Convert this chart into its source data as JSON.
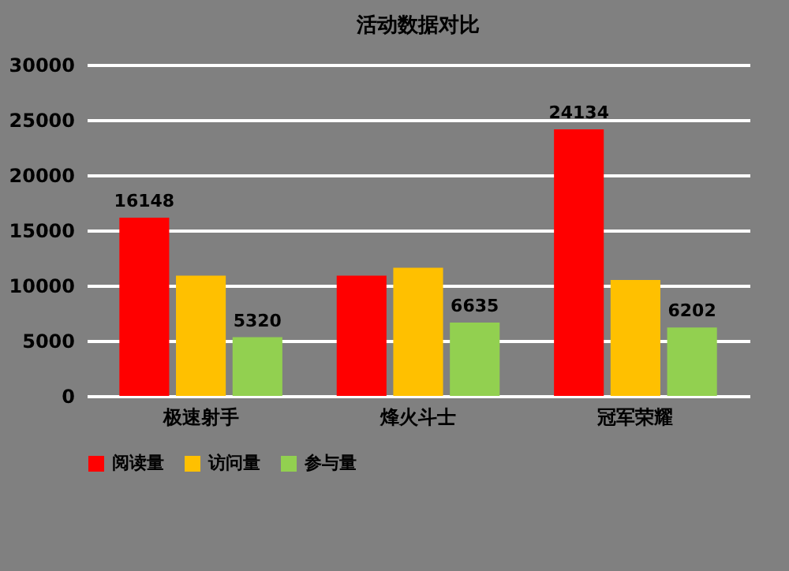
{
  "chart_data": {
    "type": "bar",
    "title": "活动数据对比",
    "categories": [
      "极速射手",
      "烽火斗士",
      "冠军荣耀"
    ],
    "series": [
      {
        "name": "阅读量",
        "color": "#ff0000",
        "values": [
          16148,
          10900,
          24134
        ],
        "value_labels": [
          "16148",
          null,
          "24134"
        ]
      },
      {
        "name": "访问量",
        "color": "#ffc000",
        "values": [
          10900,
          11600,
          10500
        ],
        "value_labels": [
          null,
          null,
          null
        ]
      },
      {
        "name": "参与量",
        "color": "#92d050",
        "values": [
          5320,
          6635,
          6202
        ],
        "value_labels": [
          "5320",
          "6635",
          "6202"
        ]
      }
    ],
    "ylim": [
      0,
      30000
    ],
    "yticks": [
      0,
      5000,
      10000,
      15000,
      20000,
      25000,
      30000
    ],
    "grid": "y",
    "legend": "bottom"
  }
}
